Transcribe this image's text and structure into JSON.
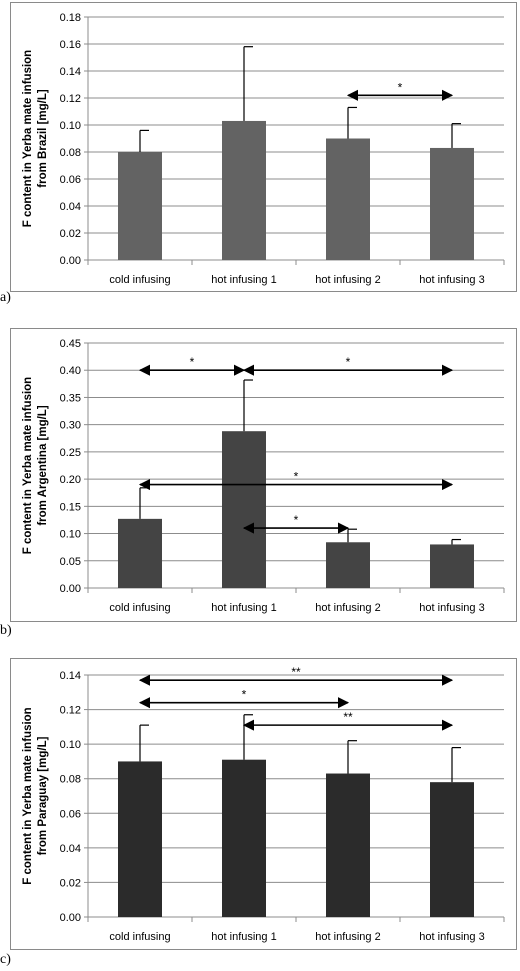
{
  "panel_letters": [
    "a)",
    "b)",
    "c)"
  ],
  "chart_data": [
    {
      "type": "bar",
      "ylabel_line1": "F content in Yerba mate infusion",
      "ylabel_line2": "from Brazil [mg/L]",
      "categories": [
        "cold infusing",
        "hot infusing 1",
        "hot infusing 2",
        "hot infusing 3"
      ],
      "values": [
        0.08,
        0.103,
        0.09,
        0.083
      ],
      "errors": [
        0.016,
        0.055,
        0.023,
        0.018
      ],
      "ylim": [
        0,
        0.18
      ],
      "yticks": [
        "0.00",
        "0.02",
        "0.04",
        "0.06",
        "0.08",
        "0.10",
        "0.12",
        "0.14",
        "0.16",
        "0.18"
      ],
      "bar_color": "#636363",
      "grid": true,
      "significance": [
        {
          "from": 2,
          "to": 3,
          "y": 0.122,
          "label": "*"
        }
      ]
    },
    {
      "type": "bar",
      "ylabel_line1": "F content in Yerba mate infusion",
      "ylabel_line2": "from  Argentina [mg/L]",
      "categories": [
        "cold infusing",
        "hot infusing 1",
        "hot infusing 2",
        "hot infusing 3"
      ],
      "values": [
        0.127,
        0.288,
        0.084,
        0.08
      ],
      "errors": [
        0.057,
        0.094,
        0.024,
        0.009
      ],
      "ylim": [
        0,
        0.45
      ],
      "yticks": [
        "0.00",
        "0.05",
        "0.10",
        "0.15",
        "0.20",
        "0.25",
        "0.30",
        "0.35",
        "0.40",
        "0.45"
      ],
      "bar_color": "#444444",
      "grid": true,
      "significance": [
        {
          "from": 0,
          "to": 1,
          "y": 0.4,
          "label": "*"
        },
        {
          "from": 1,
          "to": 3,
          "y": 0.4,
          "label": "*"
        },
        {
          "from": 0,
          "to": 3,
          "y": 0.19,
          "label": "*"
        },
        {
          "from": 1,
          "to": 2,
          "y": 0.11,
          "label": "*"
        }
      ]
    },
    {
      "type": "bar",
      "ylabel_line1": "F content in Yerba mate infusion",
      "ylabel_line2": "from Paraguay [mg/L]",
      "categories": [
        "cold infusing",
        "hot infusing 1",
        "hot infusing 2",
        "hot infusing 3"
      ],
      "values": [
        0.09,
        0.091,
        0.083,
        0.078
      ],
      "errors": [
        0.021,
        0.026,
        0.019,
        0.02
      ],
      "ylim": [
        0,
        0.14
      ],
      "yticks": [
        "0.00",
        "0.02",
        "0.04",
        "0.06",
        "0.08",
        "0.10",
        "0.12",
        "0.14"
      ],
      "bar_color": "#2b2b2b",
      "grid": true,
      "significance": [
        {
          "from": 0,
          "to": 3,
          "y": 0.137,
          "label": "**"
        },
        {
          "from": 0,
          "to": 2,
          "y": 0.124,
          "label": "*"
        },
        {
          "from": 1,
          "to": 3,
          "y": 0.111,
          "label": "**"
        }
      ]
    }
  ]
}
